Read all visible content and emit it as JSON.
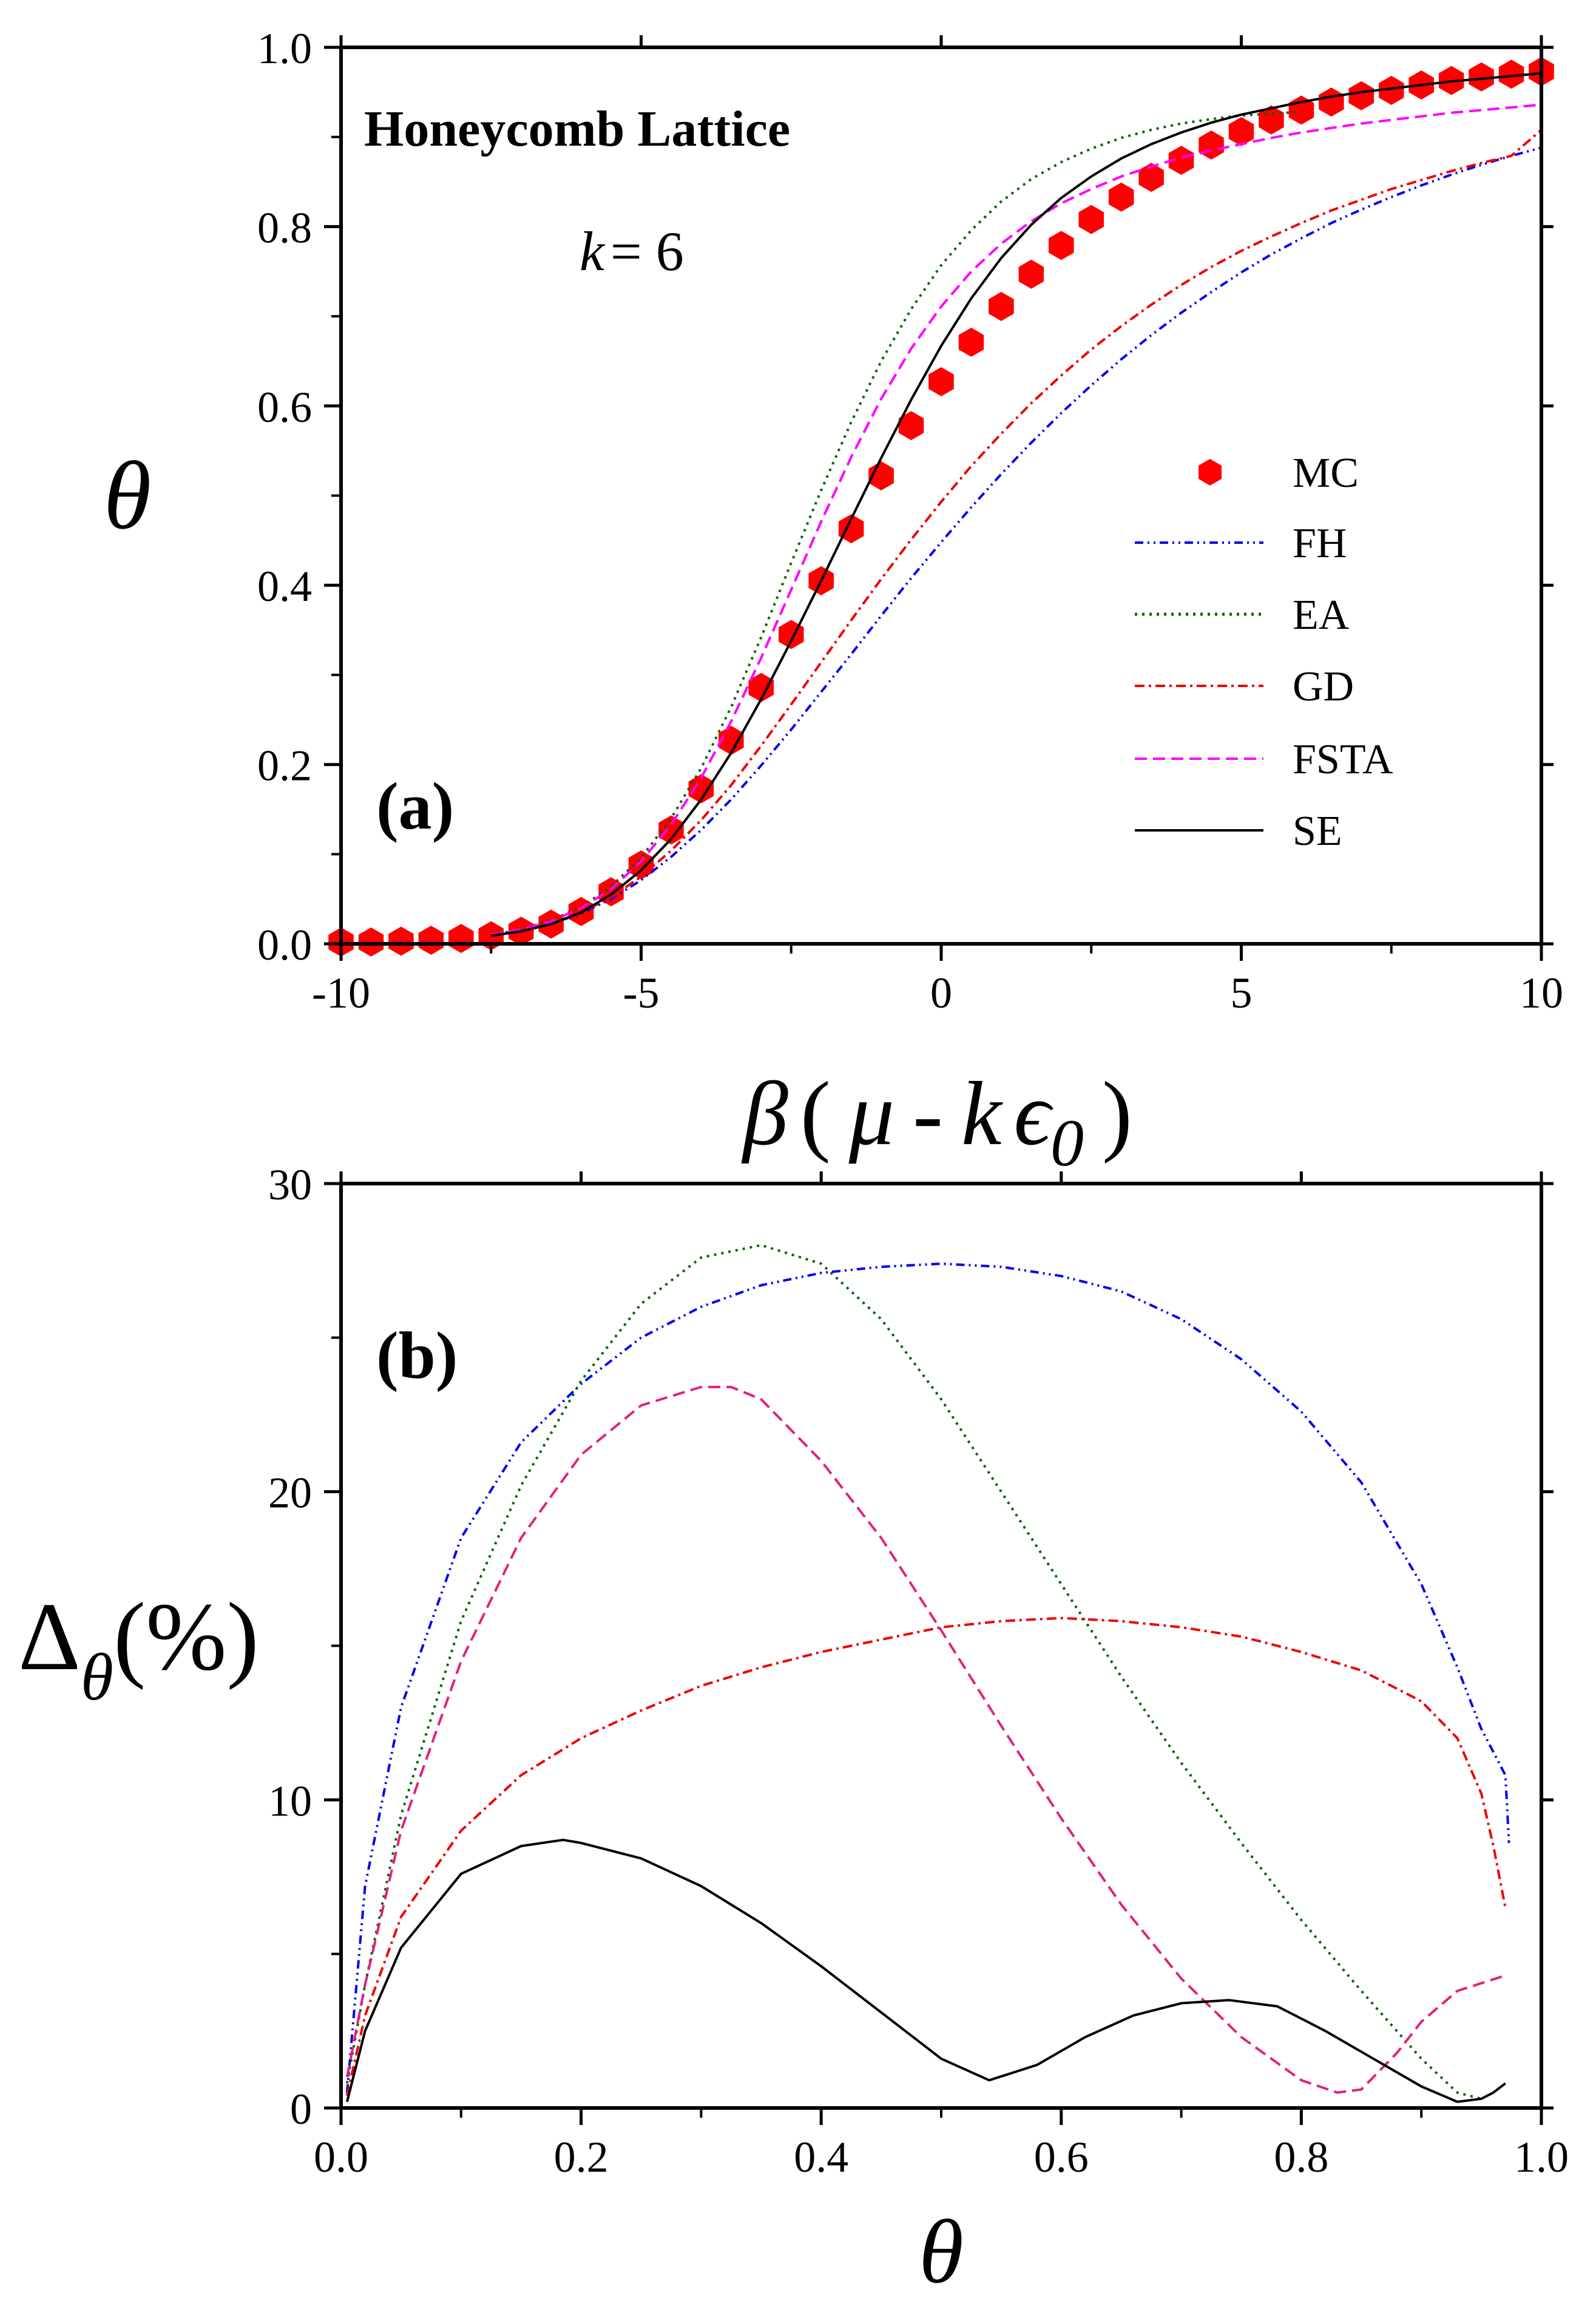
{
  "chart_data": [
    {
      "type": "line",
      "panel_label": "(a)",
      "annotations": {
        "title": "Honeycomb Lattice",
        "k_symbol": "k",
        "k_value": "= 6"
      },
      "xlabel": {
        "beta": "β",
        "open": "(",
        "mu": "μ",
        "dash": "-",
        "k": "k",
        "eps": "ϵ",
        "sub": "0",
        "close": ")"
      },
      "ylabel": "θ",
      "xlim": [
        -10,
        10
      ],
      "ylim": [
        0,
        1.0
      ],
      "x_ticks": [
        "-10",
        "-5",
        "0",
        "5",
        "10"
      ],
      "y_ticks": [
        "0.0",
        "0.2",
        "0.4",
        "0.6",
        "0.8",
        "1.0"
      ],
      "legend": {
        "position": "center-right",
        "entries": [
          "MC",
          "FH",
          "EA",
          "GD",
          "FSTA",
          "SE"
        ]
      },
      "series": [
        {
          "name": "MC",
          "kind": "markers",
          "marker": "hexagon",
          "color": "#ff0000",
          "x": [
            -10,
            -9.5,
            -9,
            -8.5,
            -8,
            -7.5,
            -7,
            -6.5,
            -6,
            -5.5,
            -5,
            -4.5,
            -4,
            -3.5,
            -3,
            -2.5,
            -2,
            -1.5,
            -1,
            -0.5,
            0,
            0.5,
            1,
            1.5,
            2,
            2.5,
            3,
            3.5,
            4,
            4.5,
            5,
            5.5,
            6,
            6.5,
            7,
            7.5,
            8,
            8.5,
            9,
            9.5,
            10
          ],
          "y": [
            0.002,
            0.002,
            0.003,
            0.004,
            0.006,
            0.009,
            0.014,
            0.022,
            0.036,
            0.058,
            0.088,
            0.127,
            0.173,
            0.227,
            0.286,
            0.345,
            0.405,
            0.463,
            0.522,
            0.578,
            0.627,
            0.671,
            0.711,
            0.747,
            0.779,
            0.808,
            0.833,
            0.855,
            0.874,
            0.891,
            0.906,
            0.919,
            0.93,
            0.939,
            0.946,
            0.952,
            0.958,
            0.963,
            0.967,
            0.97,
            0.973
          ]
        },
        {
          "name": "FH",
          "kind": "line",
          "dash": "dashdotdot",
          "color": "#0000ee",
          "x": [
            -7.5,
            -7,
            -6.5,
            -6,
            -5.5,
            -5,
            -4.5,
            -4,
            -3.5,
            -3,
            -2.5,
            -2,
            -1.5,
            -1,
            -0.5,
            0,
            0.5,
            1,
            1.5,
            2,
            2.5,
            3,
            3.5,
            4,
            4.5,
            5,
            5.5,
            6,
            6.5,
            7,
            7.5,
            8,
            8.5,
            9,
            9.5,
            10
          ],
          "y": [
            0.009,
            0.014,
            0.022,
            0.034,
            0.05,
            0.071,
            0.097,
            0.127,
            0.161,
            0.199,
            0.239,
            0.281,
            0.323,
            0.366,
            0.408,
            0.448,
            0.487,
            0.524,
            0.559,
            0.592,
            0.623,
            0.652,
            0.679,
            0.704,
            0.727,
            0.749,
            0.769,
            0.787,
            0.804,
            0.819,
            0.833,
            0.846,
            0.858,
            0.869,
            0.879,
            0.888
          ]
        },
        {
          "name": "EA",
          "kind": "line",
          "dash": "dotted",
          "color": "#006400",
          "x": [
            -7.5,
            -7,
            -6.5,
            -6,
            -5.5,
            -5,
            -4.5,
            -4,
            -3.5,
            -3,
            -2.5,
            -2,
            -1.5,
            -1,
            -0.5,
            0,
            0.5,
            1,
            1.5,
            2,
            2.5,
            3,
            3.5,
            4,
            4.5,
            5,
            5.5,
            6
          ],
          "y": [
            0.01,
            0.016,
            0.026,
            0.041,
            0.064,
            0.096,
            0.14,
            0.196,
            0.264,
            0.342,
            0.425,
            0.506,
            0.582,
            0.65,
            0.708,
            0.757,
            0.796,
            0.828,
            0.853,
            0.872,
            0.887,
            0.899,
            0.908,
            0.915,
            0.92,
            0.924,
            0.926,
            0.928
          ]
        },
        {
          "name": "GD",
          "kind": "line",
          "dash": "dashdot",
          "color": "#ee0000",
          "x": [
            -7.5,
            -7,
            -6.5,
            -6,
            -5.5,
            -5,
            -4.5,
            -4,
            -3.5,
            -3,
            -2.5,
            -2,
            -1.5,
            -1,
            -0.5,
            0,
            0.5,
            1,
            1.5,
            2,
            2.5,
            3,
            3.5,
            4,
            4.5,
            5,
            5.5,
            6,
            6.5,
            7,
            7.5,
            8,
            8.5,
            9,
            9.5,
            10
          ],
          "y": [
            0.009,
            0.014,
            0.022,
            0.035,
            0.052,
            0.075,
            0.104,
            0.138,
            0.177,
            0.221,
            0.267,
            0.314,
            0.361,
            0.407,
            0.451,
            0.493,
            0.533,
            0.569,
            0.603,
            0.634,
            0.663,
            0.689,
            0.713,
            0.735,
            0.755,
            0.773,
            0.789,
            0.804,
            0.818,
            0.83,
            0.842,
            0.852,
            0.862,
            0.871,
            0.879,
            0.908
          ]
        },
        {
          "name": "FSTA",
          "kind": "line",
          "dash": "dashed",
          "color": "#ff00ff",
          "x": [
            -7.5,
            -7,
            -6.5,
            -6,
            -5.5,
            -5,
            -4.5,
            -4,
            -3.5,
            -3,
            -2.5,
            -2,
            -1.5,
            -1,
            -0.5,
            0,
            0.5,
            1,
            1.5,
            2,
            2.5,
            3,
            3.5,
            4,
            4.5,
            5,
            5.5,
            6,
            6.5,
            7,
            7.5,
            8,
            8.5,
            9,
            9.5,
            10
          ],
          "y": [
            0.01,
            0.016,
            0.025,
            0.04,
            0.061,
            0.092,
            0.133,
            0.185,
            0.248,
            0.319,
            0.395,
            0.471,
            0.543,
            0.608,
            0.664,
            0.711,
            0.75,
            0.781,
            0.806,
            0.826,
            0.842,
            0.856,
            0.867,
            0.877,
            0.885,
            0.892,
            0.899,
            0.905,
            0.91,
            0.915,
            0.919,
            0.923,
            0.927,
            0.93,
            0.933,
            0.936
          ]
        },
        {
          "name": "SE",
          "kind": "line",
          "dash": "solid",
          "color": "#000000",
          "x": [
            -7.5,
            -7,
            -6.5,
            -6,
            -5.5,
            -5,
            -4.5,
            -4,
            -3.5,
            -3,
            -2.5,
            -2,
            -1.5,
            -1,
            -0.5,
            0,
            0.5,
            1,
            1.5,
            2,
            2.5,
            3,
            3.5,
            4,
            4.5,
            5,
            5.5,
            6,
            6.5,
            7,
            7.5,
            8,
            8.5,
            9,
            9.5,
            10
          ],
          "y": [
            0.009,
            0.014,
            0.022,
            0.035,
            0.055,
            0.082,
            0.117,
            0.161,
            0.213,
            0.273,
            0.338,
            0.405,
            0.474,
            0.542,
            0.607,
            0.667,
            0.72,
            0.765,
            0.802,
            0.832,
            0.856,
            0.876,
            0.892,
            0.905,
            0.916,
            0.925,
            0.932,
            0.939,
            0.945,
            0.95,
            0.954,
            0.958,
            0.962,
            0.965,
            0.968,
            0.971
          ]
        }
      ]
    },
    {
      "type": "line",
      "panel_label": "(b)",
      "xlabel": "θ",
      "ylabel": {
        "delta": "Δ",
        "sub": "θ",
        "pct": "(%)"
      },
      "xlim": [
        0,
        1.0
      ],
      "ylim": [
        0,
        30
      ],
      "x_ticks": [
        "0.0",
        "0.2",
        "0.4",
        "0.6",
        "0.8",
        "1.0"
      ],
      "y_ticks": [
        "0",
        "10",
        "20",
        "30"
      ],
      "series": [
        {
          "name": "FH",
          "kind": "line",
          "dash": "dashdotdot",
          "color": "#0000ee",
          "x": [
            0.005,
            0.02,
            0.05,
            0.1,
            0.15,
            0.2,
            0.25,
            0.3,
            0.35,
            0.4,
            0.45,
            0.5,
            0.55,
            0.6,
            0.65,
            0.7,
            0.75,
            0.8,
            0.85,
            0.9,
            0.93,
            0.95,
            0.97,
            0.973
          ],
          "y": [
            0.5,
            7.2,
            13.0,
            18.5,
            21.6,
            23.5,
            25.0,
            26.0,
            26.7,
            27.1,
            27.3,
            27.4,
            27.3,
            27.0,
            26.5,
            25.6,
            24.3,
            22.6,
            20.3,
            17.0,
            14.3,
            12.3,
            10.8,
            8.6
          ]
        },
        {
          "name": "EA",
          "kind": "line",
          "dash": "dotted",
          "color": "#006400",
          "x": [
            0.005,
            0.02,
            0.05,
            0.1,
            0.15,
            0.2,
            0.25,
            0.3,
            0.35,
            0.4,
            0.45,
            0.5,
            0.55,
            0.6,
            0.65,
            0.7,
            0.75,
            0.8,
            0.85,
            0.9,
            0.93,
            0.95
          ],
          "y": [
            0.8,
            4.0,
            9.5,
            15.8,
            20.2,
            23.6,
            26.1,
            27.6,
            28.0,
            27.4,
            25.6,
            23.0,
            20.0,
            17.0,
            14.0,
            11.2,
            8.6,
            6.1,
            3.8,
            1.6,
            0.5,
            0.3
          ]
        },
        {
          "name": "GD",
          "kind": "line",
          "dash": "dashdot",
          "color": "#ee0000",
          "x": [
            0.005,
            0.02,
            0.05,
            0.1,
            0.15,
            0.2,
            0.25,
            0.3,
            0.35,
            0.4,
            0.45,
            0.5,
            0.55,
            0.6,
            0.65,
            0.7,
            0.75,
            0.8,
            0.85,
            0.9,
            0.93,
            0.95,
            0.96,
            0.97
          ],
          "y": [
            0.4,
            3.0,
            6.2,
            9.0,
            10.8,
            12.0,
            12.9,
            13.7,
            14.3,
            14.8,
            15.2,
            15.6,
            15.8,
            15.9,
            15.8,
            15.6,
            15.3,
            14.8,
            14.2,
            13.2,
            12.0,
            10.2,
            8.5,
            6.5
          ]
        },
        {
          "name": "FSTA",
          "kind": "line",
          "dash": "dashed",
          "color": "#e0217f",
          "x": [
            0.005,
            0.02,
            0.05,
            0.1,
            0.15,
            0.2,
            0.25,
            0.3,
            0.325,
            0.35,
            0.4,
            0.45,
            0.5,
            0.55,
            0.6,
            0.65,
            0.7,
            0.75,
            0.8,
            0.83,
            0.85,
            0.88,
            0.9,
            0.93,
            0.97
          ],
          "y": [
            1.0,
            4.0,
            9.0,
            14.5,
            18.5,
            21.2,
            22.8,
            23.4,
            23.4,
            23.0,
            21.0,
            18.5,
            15.5,
            12.4,
            9.4,
            6.6,
            4.2,
            2.3,
            0.9,
            0.5,
            0.6,
            1.8,
            2.8,
            3.8,
            4.3
          ]
        },
        {
          "name": "SE",
          "kind": "line",
          "dash": "solid",
          "color": "#000000",
          "x": [
            0.005,
            0.02,
            0.05,
            0.1,
            0.15,
            0.185,
            0.2,
            0.25,
            0.3,
            0.35,
            0.4,
            0.45,
            0.5,
            0.54,
            0.58,
            0.62,
            0.66,
            0.7,
            0.74,
            0.78,
            0.82,
            0.86,
            0.9,
            0.93,
            0.95,
            0.96,
            0.97
          ],
          "y": [
            0.2,
            2.5,
            5.2,
            7.6,
            8.5,
            8.7,
            8.6,
            8.1,
            7.2,
            6.0,
            4.6,
            3.1,
            1.6,
            0.9,
            1.4,
            2.3,
            3.0,
            3.4,
            3.5,
            3.3,
            2.5,
            1.6,
            0.7,
            0.2,
            0.3,
            0.5,
            0.8
          ]
        }
      ]
    }
  ]
}
